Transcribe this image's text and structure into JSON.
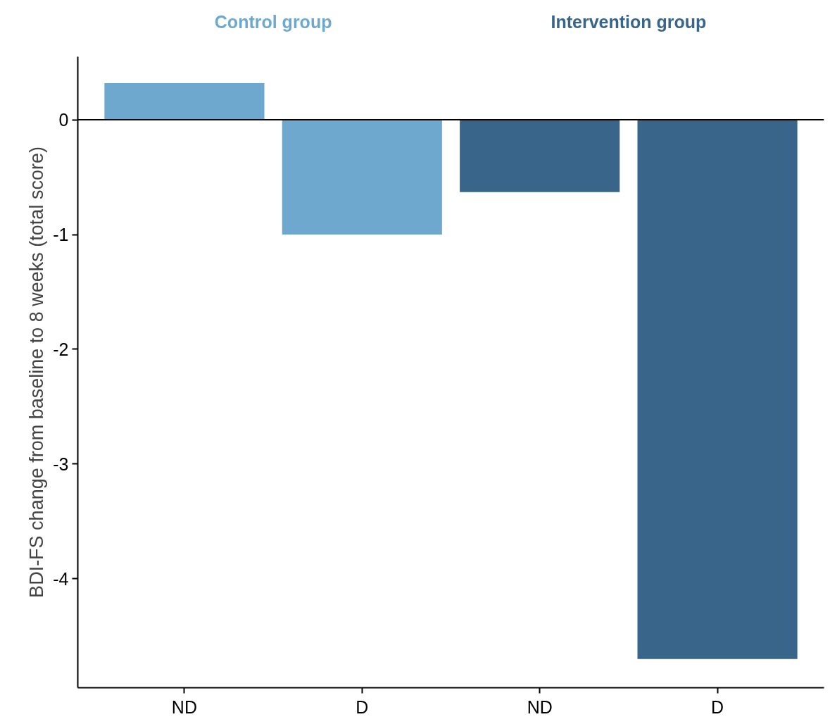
{
  "chart_data": {
    "type": "bar",
    "ylabel": "BDI-FS change from baseline to 8 weeks (total score)",
    "categories": [
      "ND",
      "D",
      "ND",
      "D"
    ],
    "series": [
      {
        "name": "Control group",
        "color": "#6fa8cf",
        "values": [
          0.32,
          -1.0,
          null,
          null
        ]
      },
      {
        "name": "Intervention group",
        "color": "#386589",
        "values": [
          null,
          null,
          -0.63,
          -4.7
        ]
      }
    ],
    "ylim": [
      -4.95,
      0.55
    ],
    "yticks": [
      0,
      -1,
      -2,
      -3,
      -4
    ],
    "ref_lines": [
      {
        "axis": "y",
        "value": 0,
        "color": "#000000"
      }
    ],
    "grid": false
  }
}
